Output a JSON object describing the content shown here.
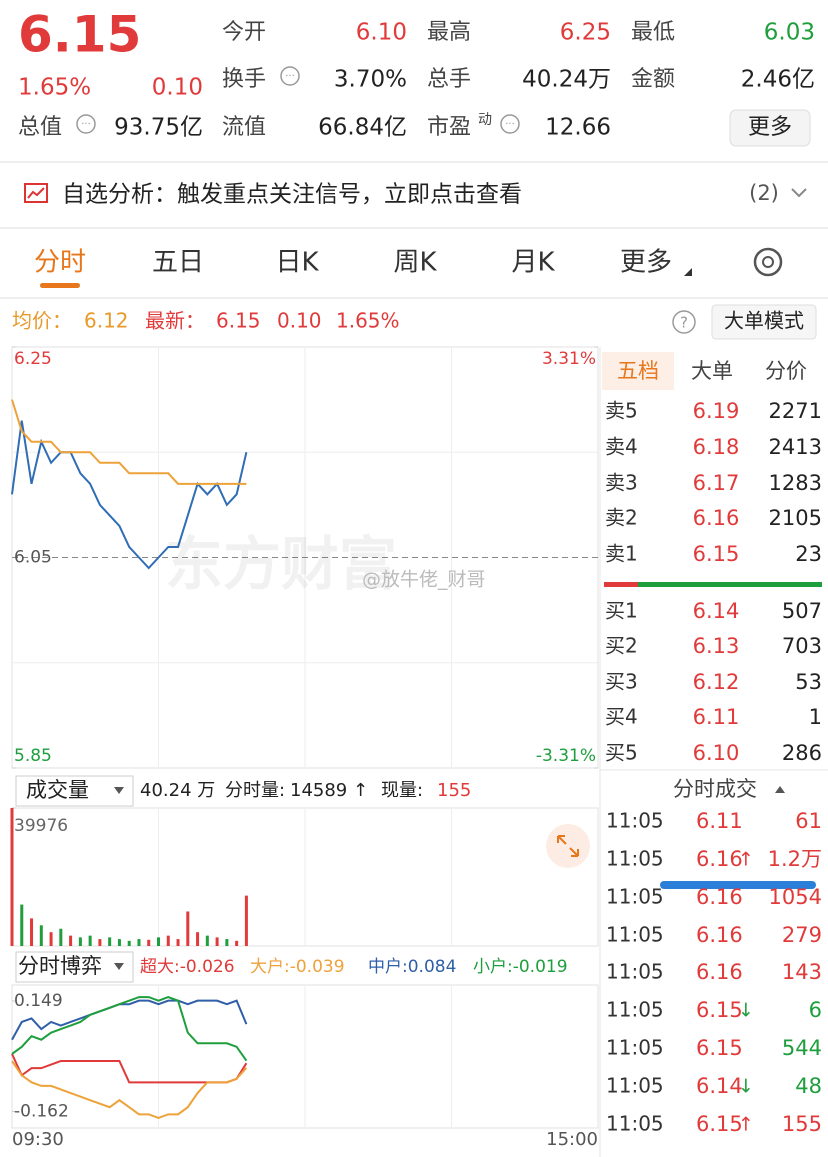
{
  "quote": {
    "price": "6.15",
    "change_pct": "1.65%",
    "change": "0.10",
    "fields": [
      {
        "label": "今开",
        "value": "6.10"
      },
      {
        "label": "最高",
        "value": "6.25"
      },
      {
        "label": "最低",
        "value": "6.03"
      },
      {
        "label": "换手",
        "value": "3.70%"
      },
      {
        "label": "总手",
        "value": "40.24万"
      },
      {
        "label": "金额",
        "value": "2.46亿"
      },
      {
        "label": "总值",
        "value": "93.75亿"
      },
      {
        "label": "流值",
        "value": "66.84亿"
      },
      {
        "label": "市盈",
        "value": "12.66"
      }
    ],
    "pe_tag": "动",
    "more": "更多"
  },
  "notice": {
    "text": "自选分析：触发重点关注信号，立即点击查看",
    "count": "(2)"
  },
  "tabs": [
    "分时",
    "五日",
    "日K",
    "周K",
    "月K",
    "更多"
  ],
  "info_bar": {
    "avg_label": "均价：",
    "avg": "6.12",
    "last_label": "最新：",
    "last": "6.15",
    "change": "0.10",
    "change_pct": "1.65%",
    "mode_button": "大单模式"
  },
  "watermark": "东方财富",
  "credit": "@放牛佬_财哥",
  "chart_data": [
    {
      "type": "line",
      "ylim": [
        5.85,
        6.25
      ],
      "yticks": [
        6.25,
        6.05,
        5.85
      ],
      "y2lim": [
        -3.31,
        3.31
      ],
      "y2ticks": [
        {
          "value": 3.31,
          "label": "3.31%"
        },
        {
          "value": -3.31,
          "label": "-3.31%"
        }
      ],
      "series": [
        {
          "color": "#2f6db5",
          "values": [
            6.11,
            6.18,
            6.12,
            6.16,
            6.14,
            6.15,
            6.15,
            6.13,
            6.12,
            6.1,
            6.09,
            6.08,
            6.06,
            6.05,
            6.04,
            6.05,
            6.06,
            6.06,
            6.09,
            6.12,
            6.11,
            6.12,
            6.1,
            6.11,
            6.15
          ]
        },
        {
          "color": "#eda23a",
          "values": [
            6.2,
            6.17,
            6.16,
            6.16,
            6.16,
            6.15,
            6.15,
            6.15,
            6.15,
            6.14,
            6.14,
            6.14,
            6.13,
            6.13,
            6.13,
            6.13,
            6.13,
            6.12,
            6.12,
            6.12,
            6.12,
            6.12,
            6.12,
            6.12,
            6.12
          ]
        }
      ]
    },
    {
      "type": "bar",
      "selector": "成交量",
      "total": "40.24 万",
      "label1": "分时量:",
      "v1": "14589 ↑",
      "label2": "现量:",
      "v2": "155",
      "ylim": [
        0,
        39976
      ],
      "yticks": [
        39976
      ],
      "values": [
        39976,
        12000,
        8000,
        6000,
        4000,
        5000,
        3000,
        2500,
        3000,
        2000,
        2500,
        2000,
        1500,
        2000,
        1800,
        2500,
        3000,
        2000,
        10000,
        4000,
        3000,
        2500,
        2000,
        1500,
        14589
      ],
      "colors": [
        "#e03a3a",
        "#1e9e3c",
        "#e03a3a",
        "#1e9e3c",
        "#e03a3a",
        "#1e9e3c",
        "#e03a3a",
        "#1e9e3c",
        "#1e9e3c",
        "#e03a3a",
        "#1e9e3c",
        "#1e9e3c",
        "#1e9e3c",
        "#1e9e3c",
        "#e03a3a",
        "#1e9e3c",
        "#e03a3a",
        "#e03a3a",
        "#e03a3a",
        "#e03a3a",
        "#1e9e3c",
        "#e03a3a",
        "#1e9e3c",
        "#e03a3a",
        "#e03a3a"
      ]
    },
    {
      "type": "line",
      "selector": "分时博弈",
      "ylim": [
        -0.2,
        0.18
      ],
      "yticks": [
        0.149,
        -0.162
      ],
      "series": [
        {
          "legend": "超大:-0.026",
          "color": "#e03a3a",
          "values": [
            0.0,
            -0.06,
            -0.04,
            -0.04,
            -0.03,
            -0.02,
            -0.02,
            -0.02,
            -0.02,
            -0.02,
            -0.02,
            -0.02,
            -0.08,
            -0.08,
            -0.08,
            -0.08,
            -0.08,
            -0.08,
            -0.08,
            -0.08,
            -0.08,
            -0.08,
            -0.08,
            -0.07,
            -0.026
          ]
        },
        {
          "legend": "大户:-0.039",
          "color": "#eda23a",
          "values": [
            -0.02,
            -0.06,
            -0.08,
            -0.09,
            -0.09,
            -0.1,
            -0.11,
            -0.12,
            -0.13,
            -0.14,
            -0.15,
            -0.13,
            -0.15,
            -0.17,
            -0.17,
            -0.18,
            -0.17,
            -0.17,
            -0.15,
            -0.11,
            -0.08,
            -0.08,
            -0.08,
            -0.07,
            -0.039
          ]
        },
        {
          "legend": "中户:0.084",
          "color": "#2f5fa8",
          "values": [
            0.04,
            0.09,
            0.1,
            0.07,
            0.09,
            0.08,
            0.09,
            0.1,
            0.11,
            0.12,
            0.13,
            0.14,
            0.14,
            0.15,
            0.15,
            0.14,
            0.15,
            0.15,
            0.14,
            0.15,
            0.15,
            0.15,
            0.14,
            0.15,
            0.084
          ]
        },
        {
          "legend": "小户:-0.019",
          "color": "#1e9e3c",
          "values": [
            0.0,
            0.02,
            0.05,
            0.04,
            0.06,
            0.07,
            0.08,
            0.09,
            0.11,
            0.12,
            0.13,
            0.14,
            0.15,
            0.16,
            0.16,
            0.15,
            0.16,
            0.15,
            0.06,
            0.03,
            0.03,
            0.03,
            0.03,
            0.02,
            -0.019
          ]
        }
      ]
    }
  ],
  "x_labels": [
    "09:30",
    "15:00"
  ],
  "order_book": {
    "tabs": [
      "五档",
      "大单",
      "分价"
    ],
    "asks": [
      {
        "label": "卖5",
        "price": "6.19",
        "volume": "2271"
      },
      {
        "label": "卖4",
        "price": "6.18",
        "volume": "2413"
      },
      {
        "label": "卖3",
        "price": "6.17",
        "volume": "1283"
      },
      {
        "label": "卖2",
        "price": "6.16",
        "volume": "2105"
      },
      {
        "label": "卖1",
        "price": "6.15",
        "volume": "23"
      }
    ],
    "bids": [
      {
        "label": "买1",
        "price": "6.14",
        "volume": "507"
      },
      {
        "label": "买2",
        "price": "6.13",
        "volume": "703"
      },
      {
        "label": "买3",
        "price": "6.12",
        "volume": "53"
      },
      {
        "label": "买4",
        "price": "6.11",
        "volume": "1"
      },
      {
        "label": "买5",
        "price": "6.10",
        "volume": "286"
      }
    ]
  },
  "trades": {
    "title": "分时成交",
    "rows": [
      {
        "time": "11:05",
        "price": "6.11",
        "volume": "61",
        "color": "#e03a3a"
      },
      {
        "time": "11:05",
        "price": "6.16",
        "dir": "↑",
        "volume": "1.2万",
        "color": "#e03a3a"
      },
      {
        "time": "11:05",
        "price": "6.16",
        "volume": "1054",
        "color": "#e03a3a"
      },
      {
        "time": "11:05",
        "price": "6.16",
        "volume": "279",
        "color": "#e03a3a"
      },
      {
        "time": "11:05",
        "price": "6.16",
        "volume": "143",
        "color": "#e03a3a"
      },
      {
        "time": "11:05",
        "price": "6.15",
        "dir": "↓",
        "volume": "6",
        "color": "#1e9e3c"
      },
      {
        "time": "11:05",
        "price": "6.15",
        "volume": "544",
        "color": "#1e9e3c"
      },
      {
        "time": "11:05",
        "price": "6.14",
        "dir": "↓",
        "volume": "48",
        "color": "#1e9e3c"
      },
      {
        "time": "11:05",
        "price": "6.15",
        "dir": "↑",
        "volume": "155",
        "color": "#e03a3a"
      }
    ]
  }
}
